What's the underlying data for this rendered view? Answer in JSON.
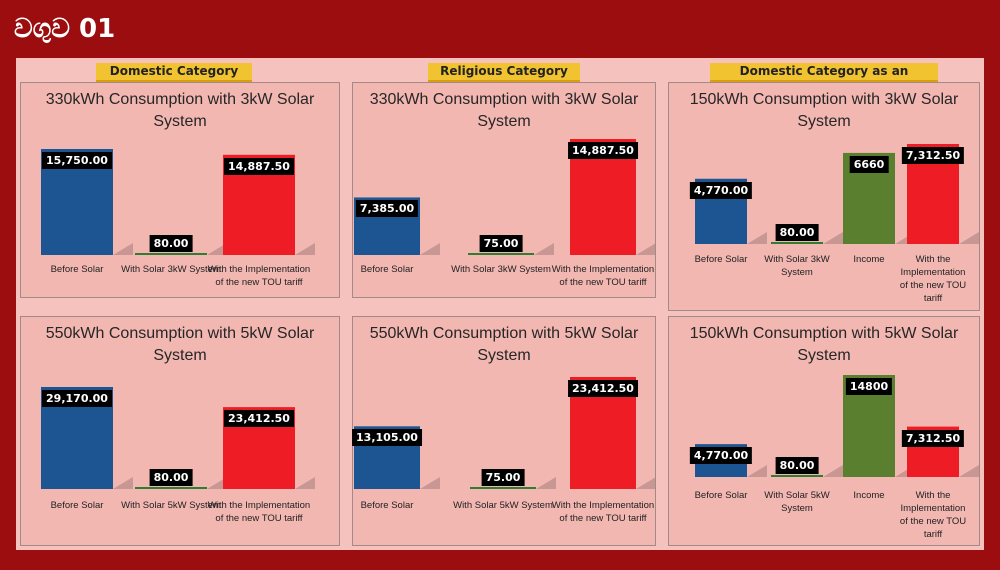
{
  "header": {
    "title": "වගුව 01"
  },
  "categories": [
    {
      "label": "Domestic Category"
    },
    {
      "label": "Religious Category"
    },
    {
      "label": "Domestic Category as an Investment"
    }
  ],
  "colors": {
    "Before Solar": "#1d5592",
    "With Solar": "#2e7d32",
    "Income": "#5a7f2e",
    "TOU": "#ee1c25"
  },
  "chart_data": [
    {
      "type": "bar",
      "title": "330kWh Consumption with 3kW Solar System",
      "categories": [
        "Before Solar",
        "With Solar 3kW System",
        "With the Implementation of the new TOU tariff"
      ],
      "values": [
        15750.0,
        80.0,
        14887.5
      ],
      "value_labels": [
        "15,750.00",
        "80.00",
        "14,887.50"
      ],
      "ylim": [
        0,
        15750
      ]
    },
    {
      "type": "bar",
      "title": "330kWh Consumption with 3kW Solar System",
      "categories": [
        "Before Solar",
        "With Solar 3kW System",
        "With the Implementation of the new TOU tariff"
      ],
      "values": [
        7385.0,
        75.0,
        14887.5
      ],
      "value_labels": [
        "7,385.00",
        "75.00",
        "14,887.50"
      ],
      "ylim": [
        0,
        14887.5
      ]
    },
    {
      "type": "bar",
      "title": "150kWh Consumption with 3kW Solar System",
      "categories": [
        "Before Solar",
        "With Solar 3kW System",
        "Income",
        "With the Implementation of the new TOU tariff"
      ],
      "values": [
        4770.0,
        80.0,
        6660,
        7312.5
      ],
      "value_labels": [
        "4,770.00",
        "80.00",
        "6660",
        "7,312.50"
      ],
      "ylim": [
        0,
        7312.5
      ]
    },
    {
      "type": "bar",
      "title": "550kWh Consumption with 5kW Solar System",
      "categories": [
        "Before Solar",
        "With Solar 5kW System",
        "With the Implementation of the new TOU tariff"
      ],
      "values": [
        29170.0,
        80.0,
        23412.5
      ],
      "value_labels": [
        "29,170.00",
        "80.00",
        "23,412.50"
      ],
      "ylim": [
        0,
        29170
      ]
    },
    {
      "type": "bar",
      "title": "550kWh Consumption with 5kW Solar System",
      "categories": [
        "Before Solar",
        "With Solar 5kW System",
        "With the Implementation of the new TOU tariff"
      ],
      "values": [
        13105.0,
        75.0,
        23412.5
      ],
      "value_labels": [
        "13,105.00",
        "75.00",
        "23,412.50"
      ],
      "ylim": [
        0,
        23412.5
      ]
    },
    {
      "type": "bar",
      "title": "150kWh Consumption with 5kW Solar System",
      "categories": [
        "Before Solar",
        "With Solar 5kW System",
        "Income",
        "With the Implementation of the new TOU tariff"
      ],
      "values": [
        4770.0,
        80.0,
        14800,
        7312.5
      ],
      "value_labels": [
        "4,770.00",
        "80.00",
        "14800",
        "7,312.50"
      ],
      "ylim": [
        0,
        14800
      ]
    }
  ]
}
